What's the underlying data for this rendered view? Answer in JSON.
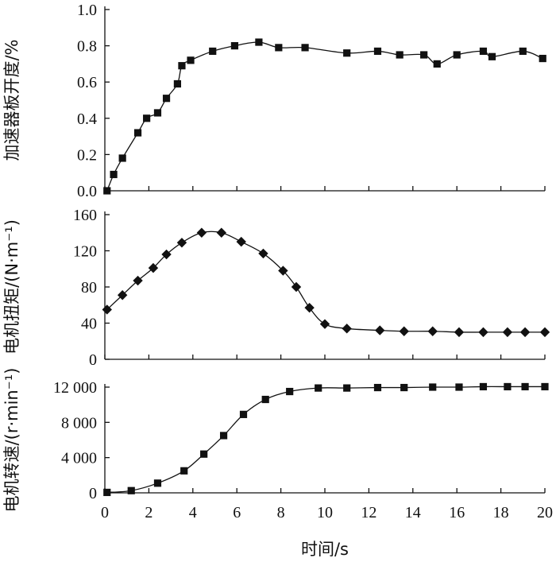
{
  "chart_data": [
    {
      "type": "line",
      "marker": "square",
      "ylabel": "加速器板开度/%",
      "ylim": [
        0,
        1.0
      ],
      "yticks": [
        "0.0",
        "0.2",
        "0.4",
        "0.6",
        "0.8",
        "1.0"
      ],
      "ytick_values": [
        0,
        0.2,
        0.4,
        0.6,
        0.8,
        1.0
      ],
      "series": [
        {
          "x": [
            0.1,
            0.4,
            0.8,
            1.5,
            1.9,
            2.4,
            2.8,
            3.3,
            3.5,
            3.9,
            4.9,
            5.9,
            7.0,
            7.9,
            9.1,
            11.0,
            12.4,
            13.4,
            14.5,
            15.1,
            16.0,
            17.2,
            17.6,
            19.0,
            19.9
          ],
          "y": [
            0.0,
            0.09,
            0.18,
            0.32,
            0.4,
            0.43,
            0.51,
            0.59,
            0.69,
            0.72,
            0.77,
            0.8,
            0.82,
            0.79,
            0.79,
            0.76,
            0.77,
            0.75,
            0.75,
            0.7,
            0.75,
            0.77,
            0.74,
            0.77,
            0.73
          ]
        }
      ]
    },
    {
      "type": "line",
      "marker": "diamond",
      "ylabel": "电机扭矩/(N·m⁻¹)",
      "ylim": [
        0,
        160
      ],
      "yticks": [
        "0",
        "40",
        "80",
        "120",
        "160"
      ],
      "ytick_values": [
        0,
        40,
        80,
        120,
        160
      ],
      "series": [
        {
          "x": [
            0.1,
            0.8,
            1.5,
            2.2,
            2.8,
            3.5,
            4.4,
            5.3,
            6.2,
            7.2,
            8.1,
            8.7,
            9.3,
            10.0,
            11.0,
            12.5,
            13.6,
            14.9,
            16.1,
            17.2,
            18.3,
            19.1,
            20.0
          ],
          "y": [
            55,
            71,
            87,
            101,
            116,
            129,
            140,
            140,
            130,
            117,
            98,
            80,
            57,
            39,
            34,
            32,
            31,
            31,
            30,
            30,
            30,
            30,
            30
          ]
        }
      ]
    },
    {
      "type": "line",
      "marker": "square",
      "ylabel": "电机转速/(r·min⁻¹)",
      "xlabel": "时间/s",
      "xlim": [
        0,
        20
      ],
      "xticks": [
        "0",
        "2",
        "4",
        "6",
        "8",
        "10",
        "12",
        "14",
        "16",
        "18",
        "20"
      ],
      "ylim": [
        0,
        12000
      ],
      "yticks": [
        "0",
        "4 000",
        "8 000",
        "12 000"
      ],
      "ytick_values": [
        0,
        4000,
        8000,
        12000
      ],
      "series": [
        {
          "x": [
            0.1,
            1.2,
            2.4,
            3.6,
            4.5,
            5.4,
            6.3,
            7.3,
            8.4,
            9.7,
            11.0,
            12.4,
            13.6,
            14.9,
            16.1,
            17.2,
            18.3,
            19.1,
            20.0
          ],
          "y": [
            50,
            250,
            1100,
            2500,
            4400,
            6500,
            8900,
            10600,
            11500,
            11900,
            11900,
            11950,
            11950,
            12000,
            12000,
            12050,
            12050,
            12050,
            12050
          ]
        }
      ]
    }
  ]
}
